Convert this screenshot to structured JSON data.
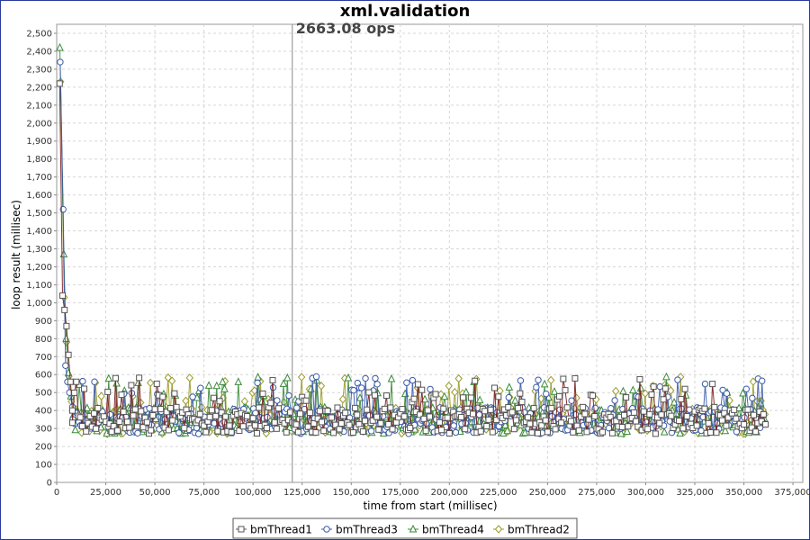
{
  "chart_data": {
    "type": "line",
    "title": "xml.validation",
    "annotation": "2663.08 ops",
    "annotation_x": 120000,
    "xlabel": "time from start (millisec)",
    "ylabel": "loop result (millisec)",
    "xlim": [
      0,
      380000
    ],
    "ylim": [
      0,
      2550
    ],
    "x_ticks": [
      0,
      25000,
      50000,
      75000,
      100000,
      125000,
      150000,
      175000,
      200000,
      225000,
      250000,
      275000,
      300000,
      325000,
      350000,
      375000
    ],
    "x_tick_labels": [
      "0",
      "25,000",
      "50,000",
      "75,000",
      "100,000",
      "125,000",
      "150,000",
      "175,000",
      "200,000",
      "225,000",
      "250,000",
      "275,000",
      "300,000",
      "325,000",
      "350,000",
      "375,000"
    ],
    "y_ticks": [
      0,
      100,
      200,
      300,
      400,
      500,
      600,
      700,
      800,
      900,
      1000,
      1100,
      1200,
      1300,
      1400,
      1500,
      1600,
      1700,
      1800,
      1900,
      2000,
      2100,
      2200,
      2300,
      2400,
      2500
    ],
    "y_tick_labels": [
      "0",
      "100",
      "200",
      "300",
      "400",
      "500",
      "600",
      "700",
      "800",
      "900",
      "1,000",
      "1,100",
      "1,200",
      "1,300",
      "1,400",
      "1,500",
      "1,600",
      "1,700",
      "1,800",
      "1,900",
      "2,000",
      "2,100",
      "2,200",
      "2,300",
      "2,400",
      "2,500"
    ],
    "grid": true,
    "legend_position": "bottom",
    "steady_state": {
      "x_start": 8000,
      "x_end": 361000,
      "step": 1000,
      "low": 270,
      "high": 420,
      "spike": 590
    },
    "series": [
      {
        "name": "bmThread1",
        "marker": "square",
        "color": "#555555",
        "initial": [
          [
            1500,
            2220
          ],
          [
            3000,
            1040
          ],
          [
            4000,
            960
          ],
          [
            5000,
            870
          ],
          [
            6000,
            710
          ],
          [
            7000,
            560
          ],
          [
            8000,
            400
          ]
        ]
      },
      {
        "name": "bmThread3",
        "marker": "circle",
        "color": "#3b5ba8",
        "initial": [
          [
            1800,
            2340
          ],
          [
            3300,
            1520
          ],
          [
            4500,
            650
          ],
          [
            5500,
            560
          ],
          [
            6500,
            500
          ],
          [
            8000,
            420
          ]
        ]
      },
      {
        "name": "bmThread4",
        "marker": "triangle",
        "color": "#3a8a3a",
        "initial": [
          [
            1600,
            2420
          ],
          [
            3600,
            1270
          ],
          [
            4800,
            800
          ],
          [
            6000,
            610
          ],
          [
            7200,
            480
          ],
          [
            8500,
            420
          ]
        ]
      },
      {
        "name": "bmThread2",
        "marker": "diamond",
        "color": "#9a9a2a",
        "initial": [
          [
            2000,
            2230
          ],
          [
            3800,
            1030
          ],
          [
            5000,
            780
          ],
          [
            6200,
            590
          ],
          [
            7500,
            450
          ],
          [
            9000,
            400
          ]
        ]
      }
    ]
  }
}
